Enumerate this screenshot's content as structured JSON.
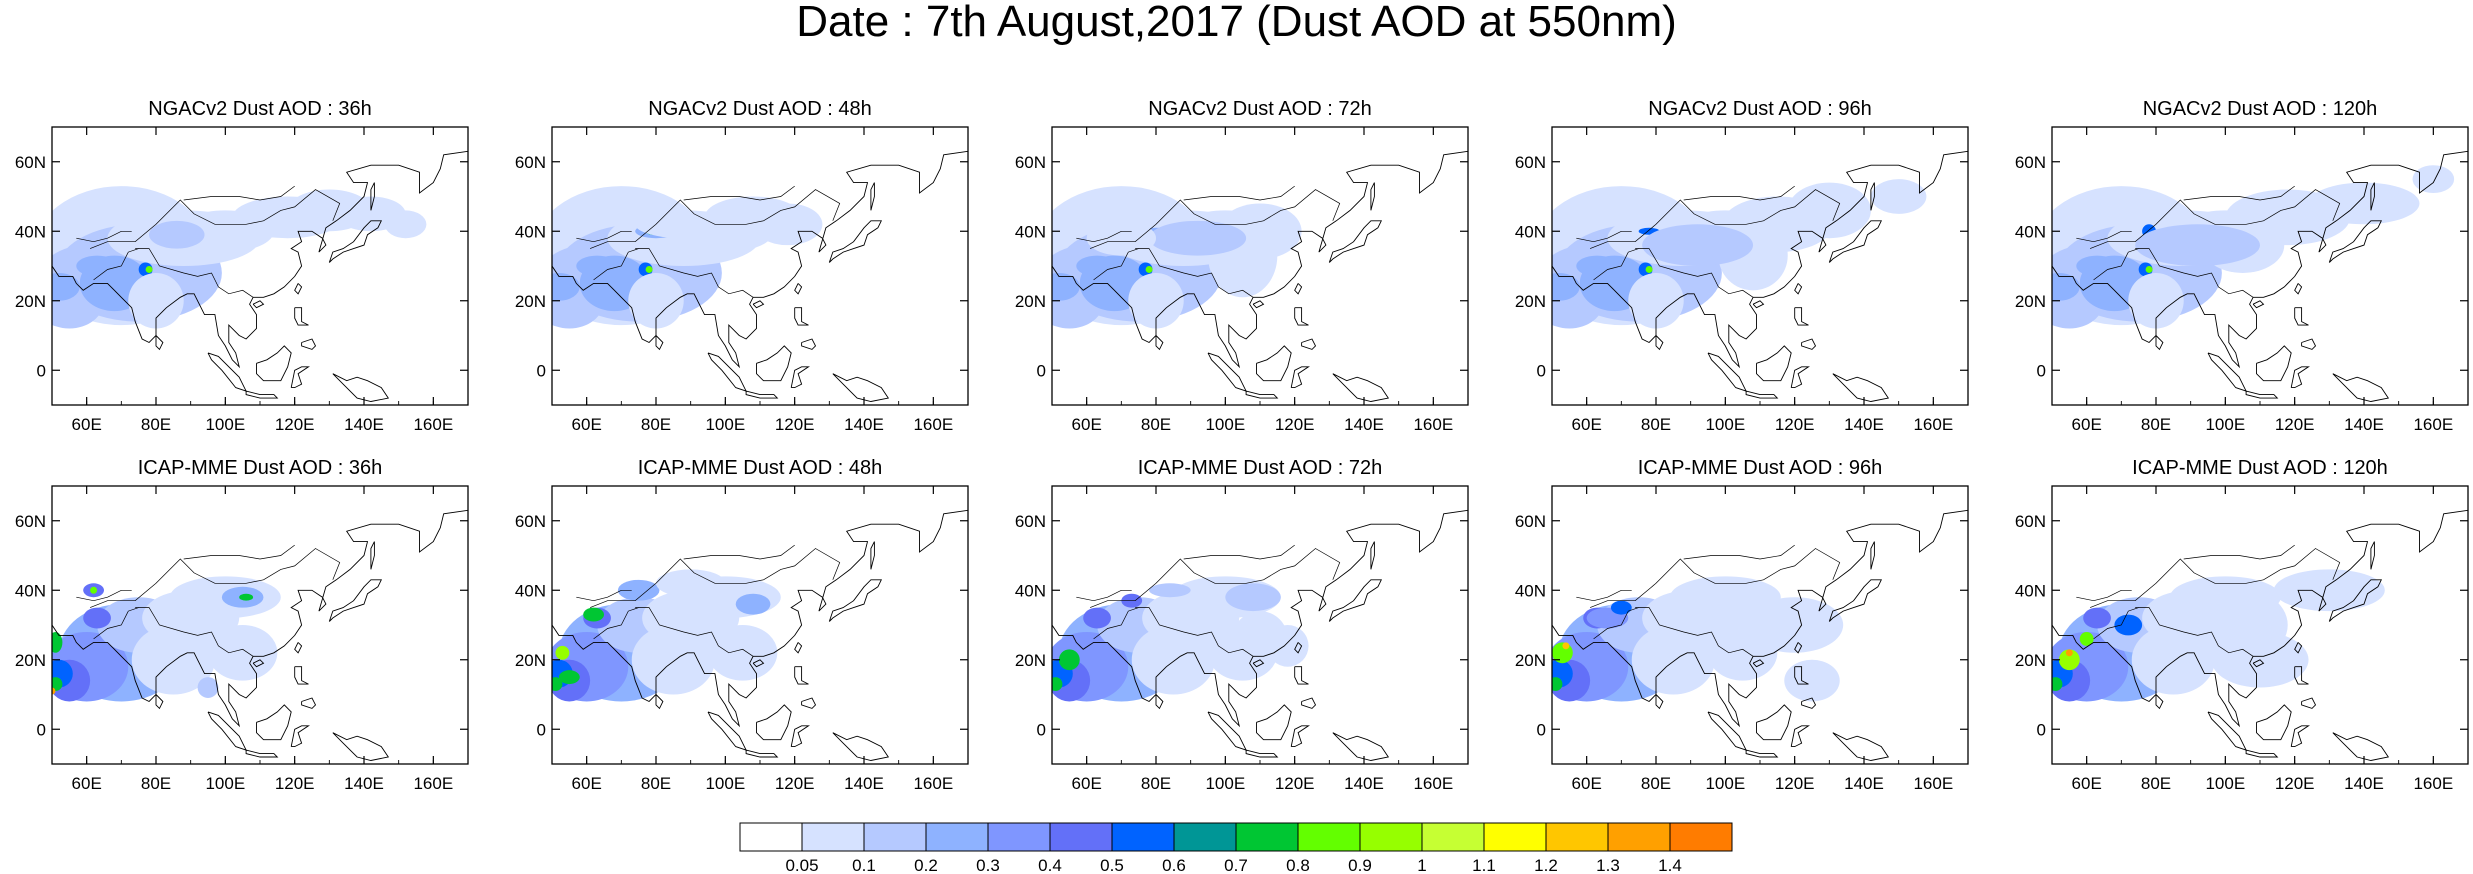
{
  "title": "Date : 7th August,2017 (Dust AOD at 550nm)",
  "rows": [
    {
      "model": "NGACv2",
      "panels": [
        {
          "title": "NGACv2 Dust AOD : 36h",
          "lead": "36h"
        },
        {
          "title": "NGACv2 Dust AOD : 48h",
          "lead": "48h"
        },
        {
          "title": "NGACv2 Dust AOD : 72h",
          "lead": "72h"
        },
        {
          "title": "NGACv2 Dust AOD : 96h",
          "lead": "96h"
        },
        {
          "title": "NGACv2 Dust AOD : 120h",
          "lead": "120h"
        }
      ]
    },
    {
      "model": "ICAP-MME",
      "panels": [
        {
          "title": "ICAP-MME Dust AOD : 36h",
          "lead": "36h"
        },
        {
          "title": "ICAP-MME Dust AOD : 48h",
          "lead": "48h"
        },
        {
          "title": "ICAP-MME Dust AOD : 72h",
          "lead": "72h"
        },
        {
          "title": "ICAP-MME Dust AOD : 96h",
          "lead": "96h"
        },
        {
          "title": "ICAP-MME Dust AOD : 120h",
          "lead": "120h"
        }
      ]
    }
  ],
  "map_extent": {
    "lon": [
      50,
      170
    ],
    "lat": [
      -10,
      70
    ]
  },
  "lon_ticks": [
    {
      "value": 60,
      "label": "60E"
    },
    {
      "value": 80,
      "label": "80E"
    },
    {
      "value": 100,
      "label": "100E"
    },
    {
      "value": 120,
      "label": "120E"
    },
    {
      "value": 140,
      "label": "140E"
    },
    {
      "value": 160,
      "label": "160E"
    }
  ],
  "lat_ticks": [
    {
      "value": 60,
      "label": "60N"
    },
    {
      "value": 40,
      "label": "40N"
    },
    {
      "value": 20,
      "label": "20N"
    },
    {
      "value": 0,
      "label": "0"
    }
  ],
  "colorbar": {
    "labels": [
      "0.05",
      "0.1",
      "0.2",
      "0.3",
      "0.4",
      "0.5",
      "0.6",
      "0.7",
      "0.8",
      "0.9",
      "1",
      "1.1",
      "1.2",
      "1.3",
      "1.4"
    ],
    "colors": [
      "#ffffff",
      "#d6e2ff",
      "#b5c9ff",
      "#8eb2ff",
      "#7f96ff",
      "#6370f8",
      "#0063ff",
      "#009696",
      "#00c633",
      "#63ff00",
      "#96ff00",
      "#c6ff33",
      "#ffff00",
      "#ffc600",
      "#ffa000",
      "#ff7c00",
      "#ff1900"
    ]
  }
}
